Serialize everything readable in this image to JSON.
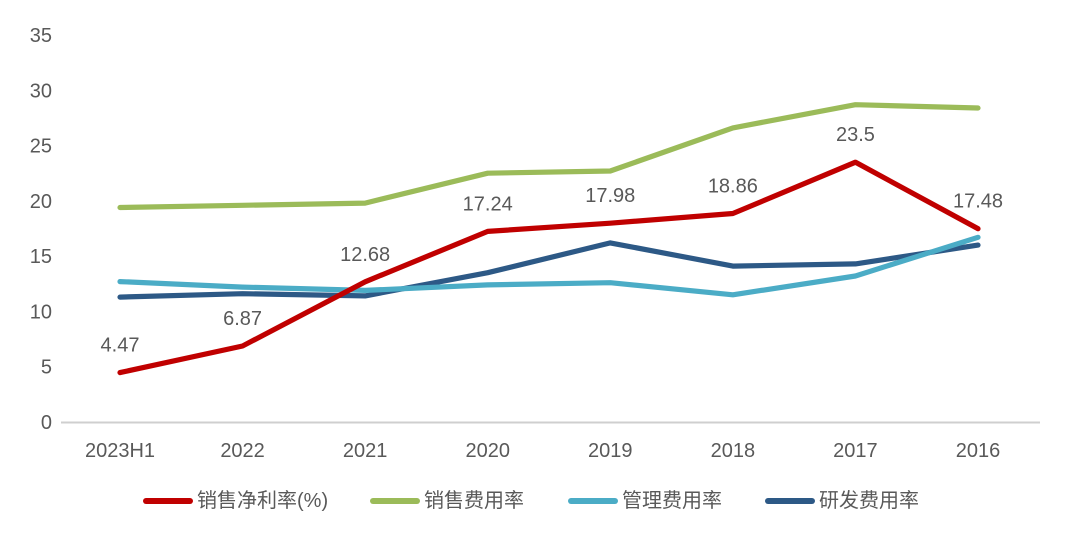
{
  "chart_data": {
    "type": "line",
    "title": "",
    "xlabel": "",
    "ylabel": "",
    "categories": [
      "2023H1",
      "2022",
      "2021",
      "2020",
      "2019",
      "2018",
      "2017",
      "2016"
    ],
    "series": [
      {
        "name": "销售净利率(%)",
        "color": "#C00000",
        "values": [
          4.47,
          6.87,
          12.68,
          17.24,
          17.98,
          18.86,
          23.5,
          17.48
        ],
        "data_labels": [
          "4.47",
          "6.87",
          "12.68",
          "17.24",
          "17.98",
          "18.86",
          "23.5",
          "17.48"
        ]
      },
      {
        "name": "销售费用率",
        "color": "#9BBB59",
        "values": [
          19.4,
          19.6,
          19.8,
          22.5,
          22.7,
          26.6,
          28.7,
          28.4
        ]
      },
      {
        "name": "管理费用率",
        "color": "#4BACC6",
        "values": [
          12.7,
          12.2,
          11.9,
          12.4,
          12.6,
          11.5,
          13.2,
          16.7
        ]
      },
      {
        "name": "研发费用率",
        "color": "#2D5986",
        "values": [
          11.3,
          11.6,
          11.4,
          13.5,
          16.2,
          14.1,
          14.3,
          16.0
        ]
      }
    ],
    "ylim": [
      0,
      35
    ],
    "yticks": [
      0,
      5,
      10,
      15,
      20,
      25,
      30,
      35
    ],
    "grid": false,
    "legend_position": "bottom"
  },
  "colors": {
    "axis_line": "#CFCFCF",
    "tick_text": "#595959",
    "data_label_text": "#595959",
    "background": "#FFFFFF"
  }
}
